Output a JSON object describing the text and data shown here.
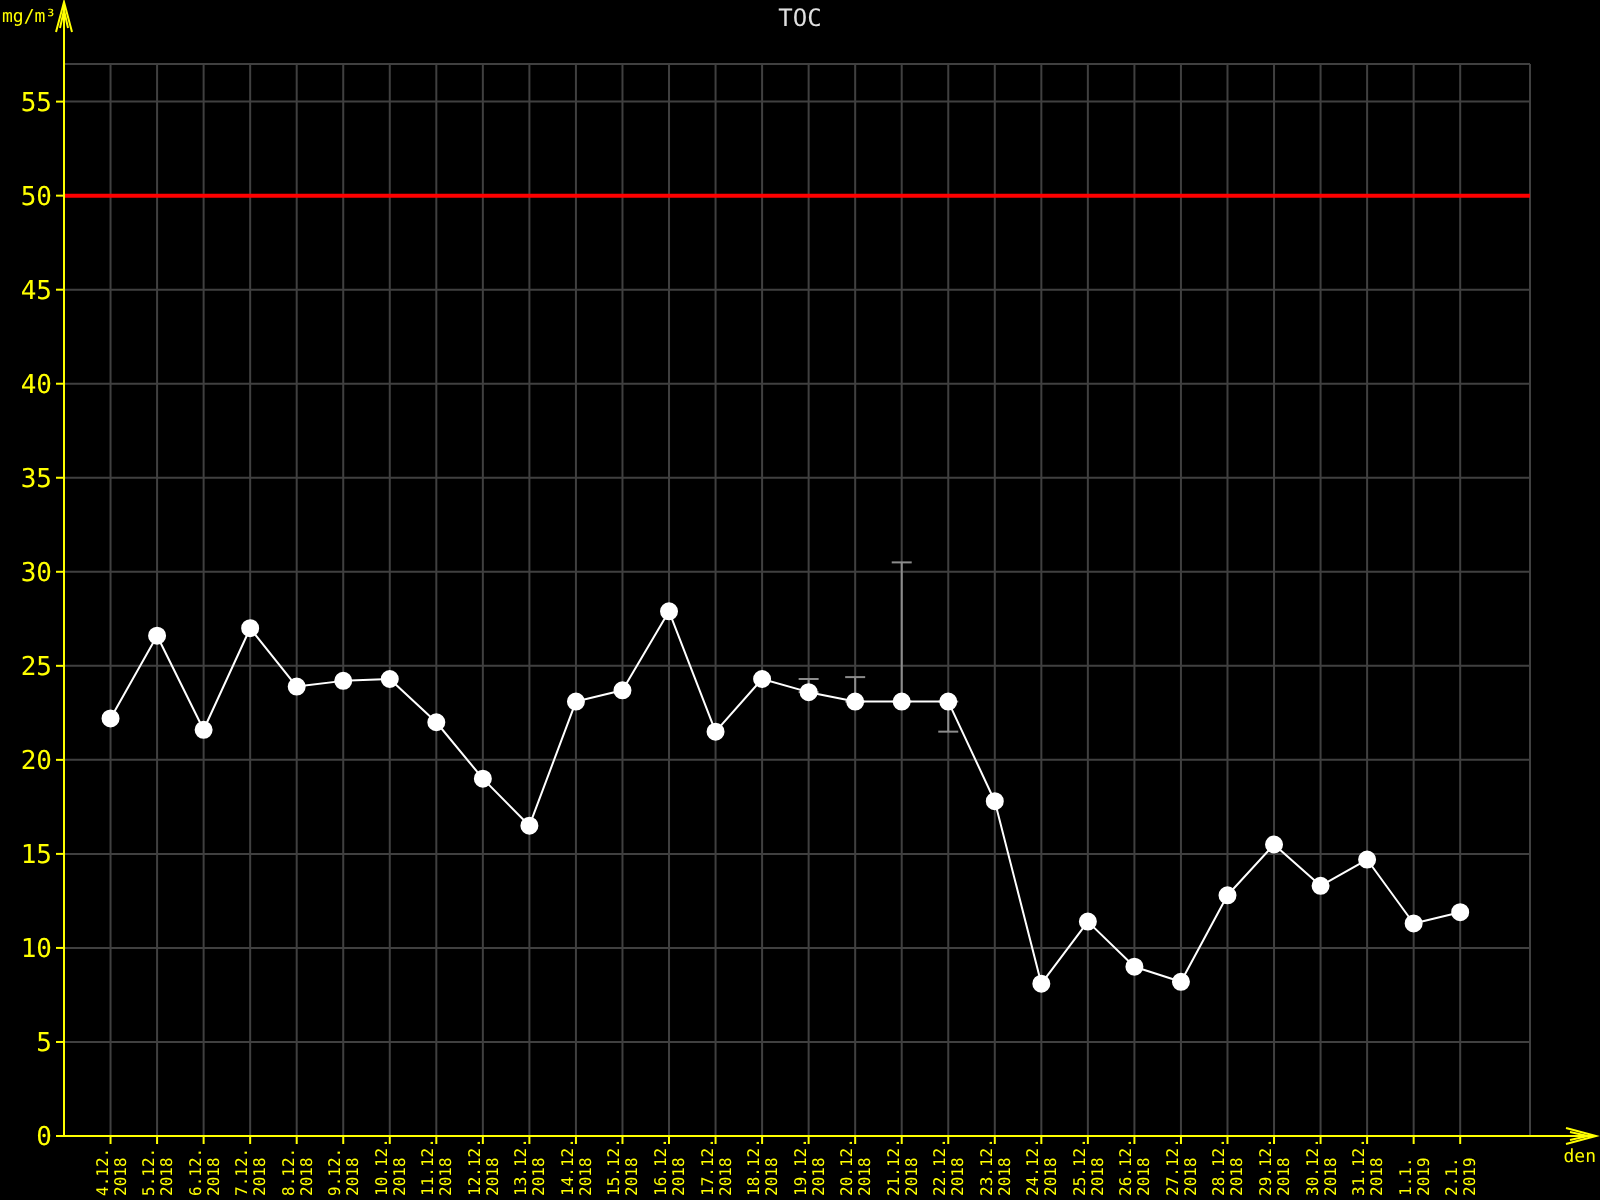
{
  "chart_data": {
    "type": "line",
    "title": "TOC",
    "xlabel": "den",
    "ylabel": "mg/m³",
    "categories": [
      "4.12. 2018",
      "5.12. 2018",
      "6.12. 2018",
      "7.12. 2018",
      "8.12. 2018",
      "9.12. 2018",
      "10.12. 2018",
      "11.12. 2018",
      "12.12. 2018",
      "13.12. 2018",
      "14.12. 2018",
      "15.12. 2018",
      "16.12. 2018",
      "17.12. 2018",
      "18.12. 2018",
      "19.12. 2018",
      "20.12. 2018",
      "21.12. 2018",
      "22.12. 2018",
      "23.12. 2018",
      "24.12. 2018",
      "25.12. 2018",
      "26.12. 2018",
      "27.12. 2018",
      "28.12. 2018",
      "29.12. 2018",
      "30.12. 2018",
      "31.12. 2018",
      "1.1. 2019",
      "2.1. 2019"
    ],
    "values": [
      22.2,
      26.6,
      21.6,
      27.0,
      23.9,
      24.2,
      24.3,
      22.0,
      19.0,
      16.5,
      23.1,
      23.7,
      27.9,
      21.5,
      24.3,
      23.6,
      23.1,
      23.1,
      23.1,
      17.8,
      8.1,
      11.4,
      9.0,
      8.2,
      12.8,
      15.5,
      13.3,
      14.7,
      11.3,
      11.9
    ],
    "color": "#ffffff",
    "marker": "circle",
    "errors": [
      null,
      null,
      null,
      null,
      null,
      null,
      null,
      null,
      null,
      null,
      null,
      null,
      null,
      null,
      null,
      [
        23.6,
        24.3
      ],
      [
        23.1,
        24.4
      ],
      [
        23.1,
        30.5
      ],
      [
        21.5,
        23.1
      ],
      null,
      null,
      null,
      null,
      null,
      null,
      null,
      null,
      null,
      null,
      null
    ],
    "ylim": [
      0,
      57
    ],
    "yticks": [
      0,
      5,
      10,
      15,
      20,
      25,
      30,
      35,
      40,
      45,
      50,
      55
    ],
    "grid": true,
    "ref_lines": [
      {
        "axis": "y",
        "value": 50,
        "color": "#ff0000"
      }
    ]
  }
}
